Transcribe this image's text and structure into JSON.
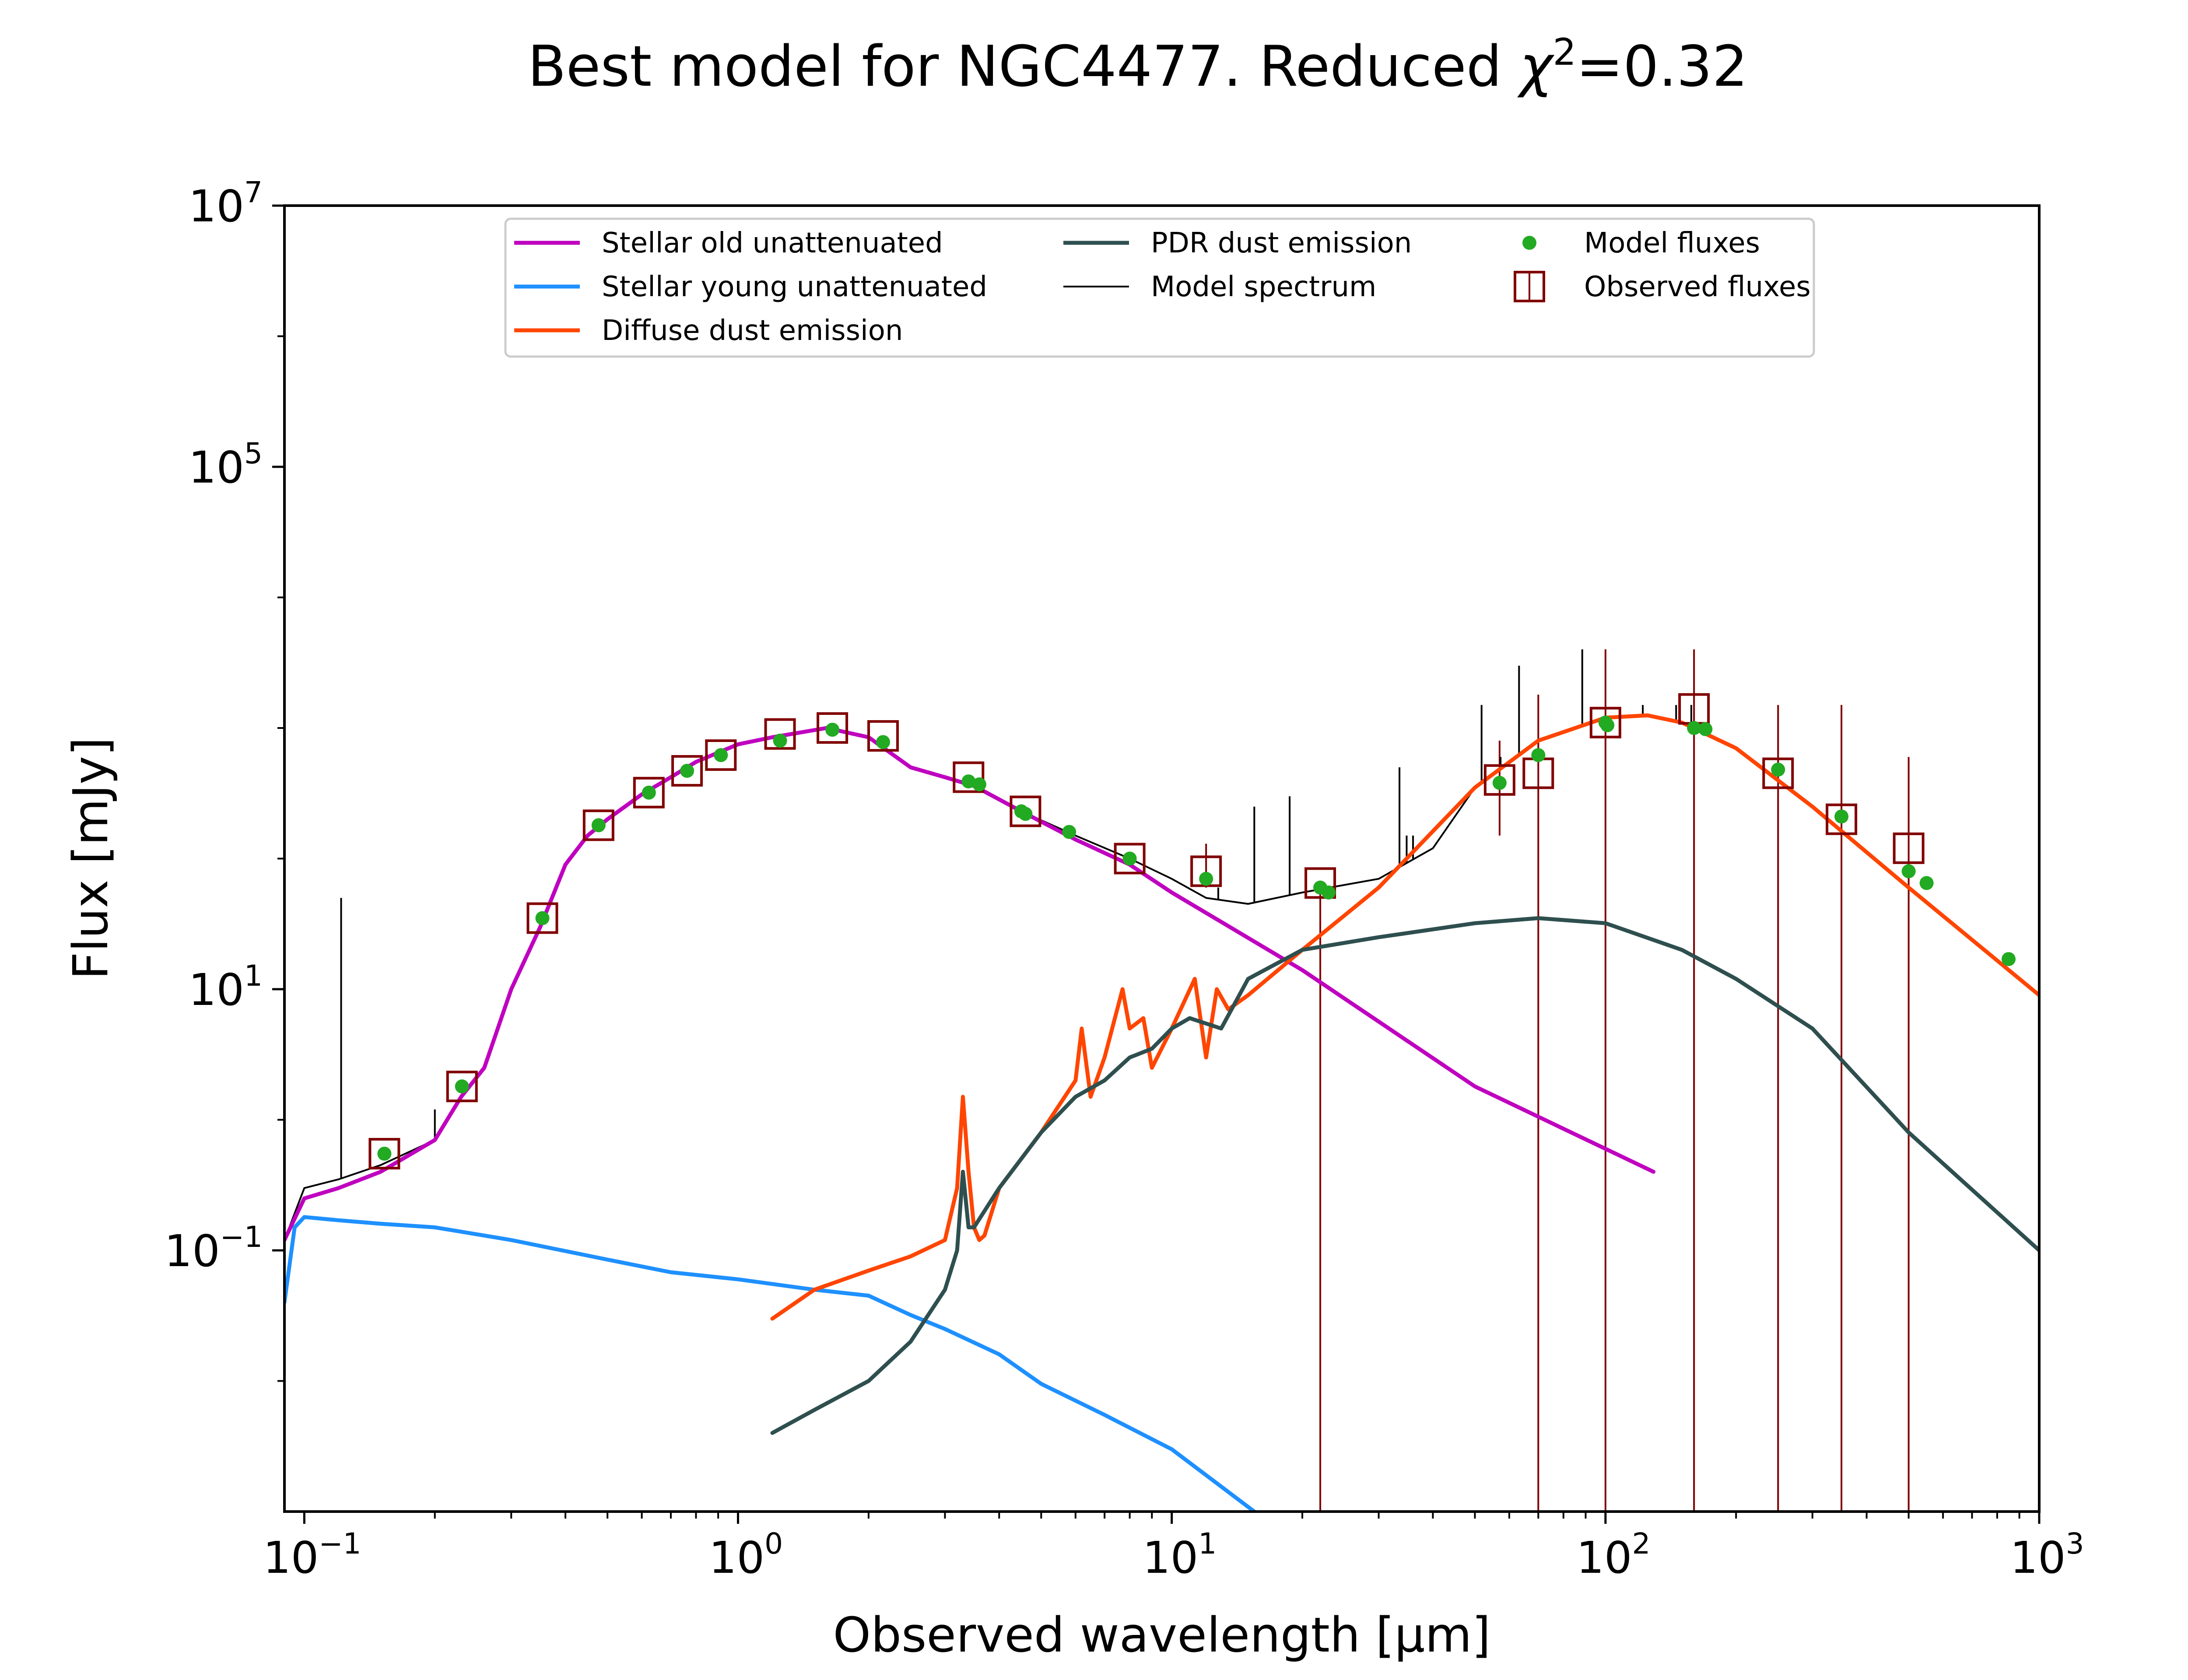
{
  "chart_data": {
    "type": "line",
    "title": {
      "prefix": "Best model for NGC4477. Reduced ",
      "chi": "χ",
      "sup": "2",
      "suffix": "=0.32"
    },
    "xlabel": "Observed wavelength [μm]",
    "ylabel": "Flux [mJy]",
    "xscale": "log",
    "yscale": "log",
    "xlim": [
      0.09,
      1000
    ],
    "ylim": [
      0.001,
      10000000
    ],
    "xticks": [
      {
        "value": 0.1,
        "base": "10",
        "exp": "−1"
      },
      {
        "value": 1,
        "base": "10",
        "exp": "0"
      },
      {
        "value": 10,
        "base": "10",
        "exp": "1"
      },
      {
        "value": 100,
        "base": "10",
        "exp": "2"
      },
      {
        "value": 1000,
        "base": "10",
        "exp": "3"
      }
    ],
    "yticks": [
      {
        "value": 0.1,
        "base": "10",
        "exp": "−1"
      },
      {
        "value": 10,
        "base": "10",
        "exp": "1"
      },
      {
        "value": 100000,
        "base": "10",
        "exp": "5"
      },
      {
        "value": 10000000,
        "base": "10",
        "exp": "7"
      }
    ],
    "legend_position": "top-center",
    "legend": [
      {
        "label": "Stellar old unattenuated",
        "kind": "line",
        "color": "#bf00bf"
      },
      {
        "label": "Stellar young unattenuated",
        "kind": "line",
        "color": "#1e90ff"
      },
      {
        "label": "Diffuse dust emission",
        "kind": "line",
        "color": "#ff4500"
      },
      {
        "label": "PDR dust emission",
        "kind": "line",
        "color": "#2f4f4f"
      },
      {
        "label": "Model spectrum",
        "kind": "thinline",
        "color": "#000000"
      },
      {
        "label": "Model fluxes",
        "kind": "dot",
        "color": "#22aa22"
      },
      {
        "label": "Observed fluxes",
        "kind": "square",
        "color": "#800000"
      }
    ],
    "series": [
      {
        "name": "Stellar old unattenuated",
        "color": "#bf00bf",
        "x": [
          0.09,
          0.1,
          0.12,
          0.15,
          0.2,
          0.23,
          0.26,
          0.3,
          0.35,
          0.4,
          0.45,
          0.5,
          0.6,
          0.7,
          0.8,
          1.0,
          1.2,
          1.6,
          2.0,
          2.5,
          3.0,
          3.5,
          4.5,
          6.0,
          8.0,
          10,
          20,
          50,
          129
        ],
        "y": [
          0.12,
          0.25,
          0.3,
          0.4,
          0.7,
          1.5,
          2.5,
          10,
          30,
          90,
          150,
          200,
          310,
          420,
          550,
          750,
          850,
          1000,
          850,
          500,
          420,
          360,
          230,
          140,
          90,
          55,
          14,
          1.8,
          0.4
        ]
      },
      {
        "name": "Stellar young unattenuated",
        "color": "#1e90ff",
        "x": [
          0.09,
          0.095,
          0.1,
          0.12,
          0.15,
          0.2,
          0.3,
          0.5,
          0.7,
          1.0,
          1.5,
          2.0,
          2.5,
          3.0,
          4.0,
          5.0,
          7.0,
          10,
          15.5
        ],
        "y": [
          0.04,
          0.15,
          0.18,
          0.17,
          0.16,
          0.15,
          0.12,
          0.085,
          0.068,
          0.06,
          0.05,
          0.045,
          0.032,
          0.025,
          0.016,
          0.0095,
          0.0055,
          0.003,
          0.001
        ]
      },
      {
        "name": "Diffuse dust emission",
        "color": "#ff4500",
        "x": [
          1.2,
          1.5,
          2.0,
          2.5,
          3.0,
          3.2,
          3.3,
          3.4,
          3.5,
          3.6,
          3.7,
          4.0,
          5.0,
          6.0,
          6.2,
          6.5,
          7.0,
          7.7,
          8.0,
          8.6,
          9.0,
          10,
          11.3,
          12,
          12.7,
          13.5,
          15,
          20,
          30,
          50,
          70,
          100,
          125,
          150,
          200,
          300,
          500,
          1000
        ],
        "y": [
          0.03,
          0.05,
          0.07,
          0.09,
          0.12,
          0.3,
          1.5,
          0.4,
          0.15,
          0.12,
          0.13,
          0.3,
          0.8,
          2.0,
          5.0,
          1.5,
          3.0,
          10,
          5.0,
          6.0,
          2.5,
          5.0,
          12,
          3.0,
          10,
          7.0,
          9.0,
          20,
          60,
          350,
          800,
          1200,
          1250,
          1100,
          700,
          250,
          60,
          9
        ]
      },
      {
        "name": "PDR dust emission",
        "color": "#2f4f4f",
        "x": [
          1.2,
          1.5,
          2.0,
          2.5,
          3.0,
          3.2,
          3.3,
          3.4,
          3.5,
          3.7,
          4.0,
          5.0,
          6.0,
          7.0,
          8.0,
          9.0,
          10,
          11,
          13,
          15,
          20,
          30,
          50,
          70,
          100,
          150,
          200,
          300,
          500,
          1000
        ],
        "y": [
          0.004,
          0.006,
          0.01,
          0.02,
          0.05,
          0.1,
          0.4,
          0.15,
          0.15,
          0.2,
          0.3,
          0.8,
          1.5,
          2.0,
          3.0,
          3.5,
          5.0,
          6.0,
          5.0,
          12,
          20,
          25,
          32,
          35,
          32,
          20,
          12,
          5.0,
          0.8,
          0.1
        ]
      },
      {
        "name": "Model spectrum",
        "color": "#000000",
        "x": [
          0.09,
          0.1,
          0.12,
          0.15,
          0.2,
          0.23,
          0.26,
          0.3,
          0.35,
          0.4,
          0.45,
          0.5,
          0.6,
          0.7,
          0.8,
          1.0,
          1.2,
          1.6,
          2.0,
          2.5,
          3.0,
          3.5,
          4.5,
          6.0,
          8.0,
          10,
          12,
          15,
          20,
          30,
          40,
          50,
          70,
          100,
          125,
          150,
          200,
          300,
          500,
          1000
        ],
        "y": [
          0.12,
          0.3,
          0.35,
          0.45,
          0.7,
          1.5,
          2.5,
          10,
          30,
          90,
          150,
          200,
          310,
          420,
          550,
          750,
          850,
          1000,
          850,
          500,
          420,
          360,
          230,
          150,
          100,
          70,
          50,
          45,
          55,
          70,
          120,
          350,
          800,
          1200,
          1250,
          1100,
          700,
          250,
          60,
          9
        ]
      }
    ],
    "emission_lines": [
      {
        "x": 0.1216,
        "y_top": 50
      },
      {
        "x": 0.2,
        "y_top": 1.2
      },
      {
        "x": 12.8,
        "y_top": 60
      },
      {
        "x": 15.5,
        "y_top": 250
      },
      {
        "x": 18.7,
        "y_top": 300
      },
      {
        "x": 33.5,
        "y_top": 500
      },
      {
        "x": 34.8,
        "y_top": 150
      },
      {
        "x": 36.0,
        "y_top": 150
      },
      {
        "x": 51.8,
        "y_top": 1500
      },
      {
        "x": 57.3,
        "y_top": 600
      },
      {
        "x": 63.2,
        "y_top": 3000
      },
      {
        "x": 88.4,
        "y_top": 4000
      },
      {
        "x": 121.9,
        "y_top": 1500
      },
      {
        "x": 145.5,
        "y_top": 1500
      },
      {
        "x": 157.7,
        "y_top": 1500
      }
    ],
    "model_fluxes": {
      "name": "Model fluxes",
      "color": "#22aa22",
      "x": [
        0.153,
        0.231,
        0.354,
        0.477,
        0.623,
        0.763,
        0.913,
        1.25,
        1.65,
        2.16,
        3.4,
        3.6,
        4.5,
        4.6,
        5.8,
        8.0,
        12,
        22,
        23,
        57,
        70,
        100,
        101,
        160,
        170,
        250,
        350,
        500,
        550,
        850
      ],
      "y": [
        0.55,
        1.8,
        35,
        180,
        320,
        470,
        620,
        800,
        970,
        780,
        390,
        370,
        230,
        220,
        160,
        100,
        70,
        60,
        55,
        380,
        620,
        1100,
        1050,
        1000,
        980,
        480,
        210,
        80,
        65,
        17
      ]
    },
    "observed_fluxes": {
      "name": "Observed fluxes",
      "color": "#800000",
      "x": [
        0.153,
        0.231,
        0.354,
        0.477,
        0.623,
        0.763,
        0.913,
        1.25,
        1.65,
        2.16,
        3.4,
        4.6,
        8.0,
        12,
        22,
        57,
        70,
        100,
        160,
        250,
        350,
        500
      ],
      "y": [
        0.55,
        1.8,
        35,
        180,
        320,
        470,
        620,
        900,
        1000,
        870,
        420,
        230,
        100,
        80,
        65,
        400,
        450,
        1100,
        1400,
        450,
        200,
        120
      ],
      "err_low": [
        0.55,
        1.8,
        35,
        180,
        320,
        470,
        620,
        900,
        1000,
        870,
        420,
        230,
        100,
        60,
        0.001,
        150,
        0.001,
        0.001,
        0.001,
        0.001,
        0.001,
        0.001
      ],
      "err_high": [
        0.55,
        1.8,
        35,
        180,
        320,
        470,
        620,
        900,
        1000,
        870,
        420,
        230,
        100,
        130,
        65,
        800,
        1800,
        4000,
        4000,
        1500,
        1500,
        600
      ]
    }
  }
}
